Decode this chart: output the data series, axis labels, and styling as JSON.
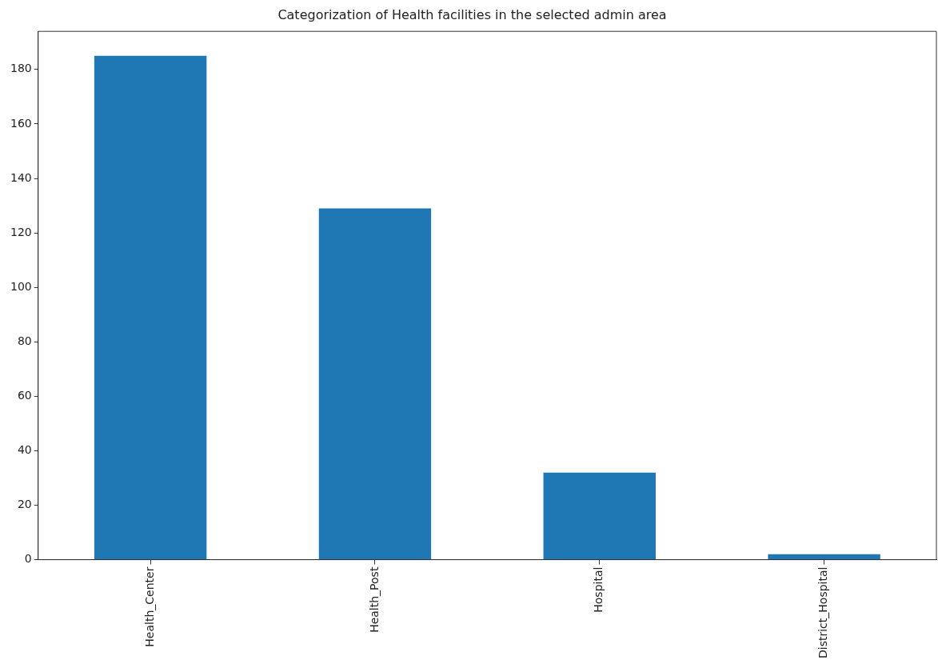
{
  "chart_data": {
    "type": "bar",
    "title": "Categorization of Health facilities in the selected admin area",
    "categories": [
      "Health_Center",
      "Health_Post",
      "Hospital",
      "District_Hospital"
    ],
    "values": [
      185,
      129,
      32,
      2
    ],
    "color": "#1f77b4",
    "ylim": [
      0,
      194
    ],
    "yticks": [
      0,
      20,
      40,
      60,
      80,
      100,
      120,
      140,
      160,
      180
    ],
    "grid": false,
    "legend": false
  }
}
